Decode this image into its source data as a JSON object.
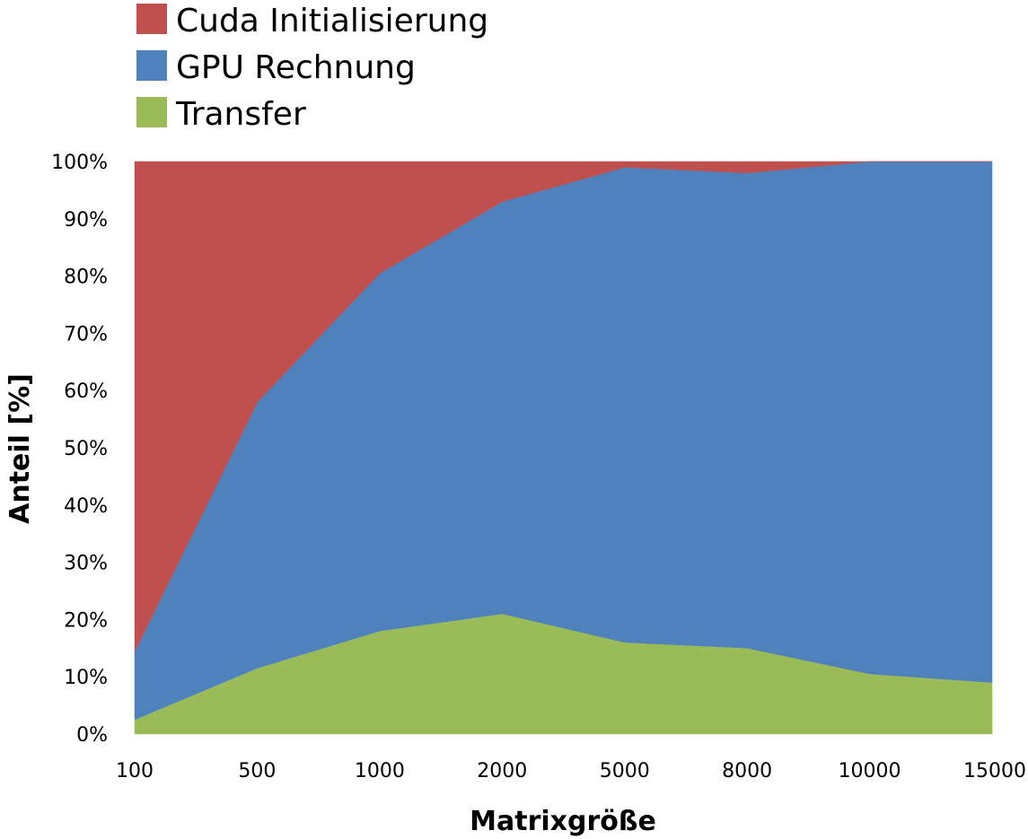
{
  "chart_data": {
    "type": "area",
    "stacked": true,
    "percent": true,
    "categories": [
      "100",
      "500",
      "1000",
      "2000",
      "5000",
      "8000",
      "10000",
      "15000"
    ],
    "series": [
      {
        "name": "Transfer",
        "color": "#9bbb59",
        "values": [
          2.5,
          11.5,
          18,
          21,
          16,
          15,
          10.5,
          9
        ]
      },
      {
        "name": "GPU Rechnung",
        "color": "#4f81bd",
        "values": [
          12,
          46.5,
          62.5,
          72,
          83,
          83,
          89.5,
          91
        ]
      },
      {
        "name": "Cuda Initialisierung",
        "color": "#c0504d",
        "values": [
          85.5,
          42,
          19.5,
          7,
          1,
          2,
          0,
          0
        ]
      }
    ],
    "legend_order": [
      "Cuda Initialisierung",
      "GPU Rechnung",
      "Transfer"
    ],
    "legend_position": "top",
    "xlabel": "Matrixgröße",
    "ylabel": "Anteil [%]",
    "ylim": [
      0,
      100
    ],
    "yticks": [
      "0%",
      "10%",
      "20%",
      "30%",
      "40%",
      "50%",
      "60%",
      "70%",
      "80%",
      "90%",
      "100%"
    ],
    "grid": false
  }
}
